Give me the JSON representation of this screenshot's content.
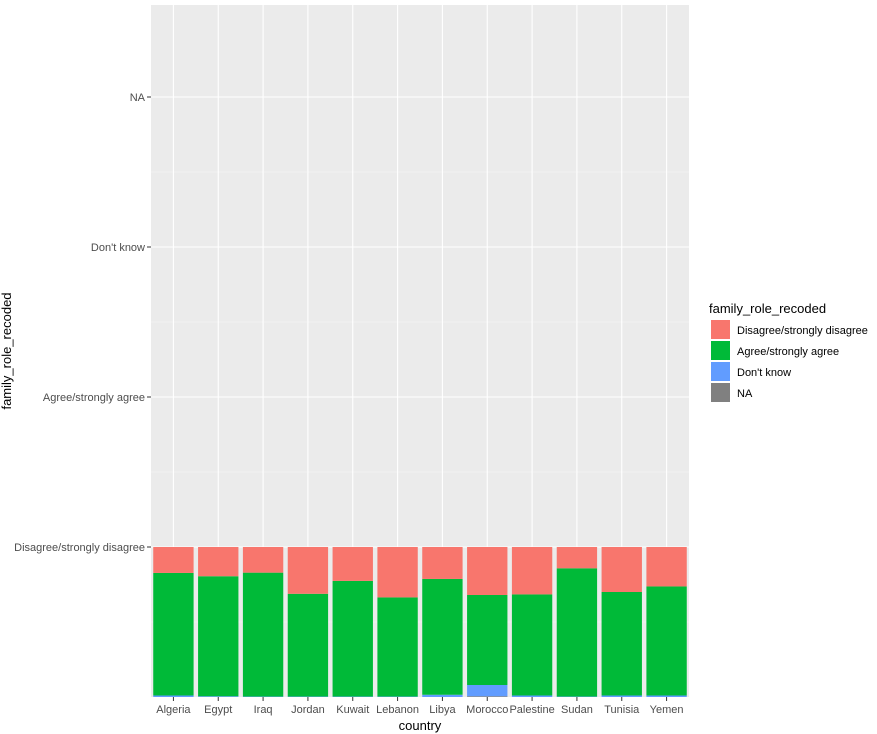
{
  "chart_data": {
    "type": "bar",
    "stacked": true,
    "xlabel": "country",
    "ylabel": "family_role_recoded",
    "categories": [
      "Algeria",
      "Egypt",
      "Iraq",
      "Jordan",
      "Kuwait",
      "Lebanon",
      "Libya",
      "Morocco",
      "Palestine",
      "Sudan",
      "Tunisia",
      "Yemen"
    ],
    "y_tick_labels": [
      "Disagree/strongly disagree",
      "Agree/strongly agree",
      "Don't know",
      "NA"
    ],
    "y_scale_note": "Bars drawn as proportions (0 to 1) on a discrete axis; each full bar reaches the level of the first tick.",
    "series": [
      {
        "name": "NA",
        "color": "#808080",
        "values": [
          0.0,
          0.0,
          0.0,
          0.0,
          0.0,
          0.0,
          0.0,
          0.005,
          0.0,
          0.0,
          0.0,
          0.0
        ]
      },
      {
        "name": "Don't know",
        "color": "#619CFF",
        "values": [
          0.01,
          0.005,
          0.003,
          0.003,
          0.003,
          0.003,
          0.015,
          0.075,
          0.01,
          0.003,
          0.01,
          0.01
        ]
      },
      {
        "name": "Agree/strongly agree",
        "color": "#00BA38",
        "values": [
          0.817,
          0.8,
          0.826,
          0.685,
          0.771,
          0.661,
          0.772,
          0.6,
          0.674,
          0.855,
          0.69,
          0.727
        ]
      },
      {
        "name": "Disagree/strongly disagree",
        "color": "#F8766D",
        "values": [
          0.173,
          0.195,
          0.171,
          0.312,
          0.226,
          0.336,
          0.213,
          0.32,
          0.316,
          0.142,
          0.3,
          0.263
        ]
      }
    ],
    "legend": {
      "title": "family_role_recoded",
      "position": "right",
      "entries": [
        {
          "label": "Disagree/strongly disagree",
          "color": "#F8766D"
        },
        {
          "label": "Agree/strongly agree",
          "color": "#00BA38"
        },
        {
          "label": "Don't know",
          "color": "#619CFF"
        },
        {
          "label": "NA",
          "color": "#808080"
        }
      ]
    },
    "grid": true,
    "panel_background": "#EBEBEB"
  }
}
